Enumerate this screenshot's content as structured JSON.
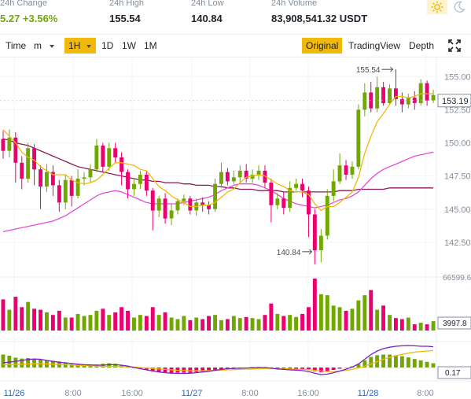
{
  "stats": {
    "change": {
      "label": "24h Change",
      "value": "5.27 +3.56%"
    },
    "high": {
      "label": "24h High",
      "value": "155.54"
    },
    "low": {
      "label": "24h Low",
      "value": "140.84"
    },
    "volume": {
      "label": "24h Volume",
      "value": "83,908,541.32 USDT"
    }
  },
  "theme": {
    "light_icon": "sun-icon",
    "dark_icon": "moon-icon",
    "active": "light"
  },
  "toolbar": {
    "time_label": "Time",
    "minute_select": "m",
    "intervals": [
      "1H",
      "1D",
      "1W",
      "1M"
    ],
    "active_interval": "1H",
    "views": [
      "Original",
      "TradingView",
      "Depth"
    ],
    "active_view": "Original",
    "expand_icon": "expand-icon"
  },
  "colors": {
    "up": "#70a800",
    "down": "#ea0070",
    "ma7": "#f0b90b",
    "ma25": "#e44cd9",
    "ma99": "#8e1b55",
    "macd_dif": "#7a22c8",
    "macd_dea": "#f0b90b",
    "accent": "#f0b90b"
  },
  "chart_data": {
    "type": "candlestick",
    "x_ticks": [
      "11/26",
      "8:00",
      "16:00",
      "11/27",
      "8:00",
      "16:00",
      "11/28",
      "8:00"
    ],
    "price_ticks": [
      "155.00",
      "152.50",
      "150.00",
      "147.50",
      "145.00",
      "142.50"
    ],
    "price_ylim": [
      140.0,
      156.5
    ],
    "current_price": "153.19",
    "high_marker": "155.54",
    "low_marker": "140.84",
    "volume_ticks": [
      "66599.63",
      "3997.8"
    ],
    "macd_ticks": [
      "0.17"
    ],
    "candles": [
      [
        150.3,
        149.4,
        150.9,
        148.8
      ],
      [
        149.4,
        150.4,
        151.0,
        148.9
      ],
      [
        150.4,
        148.5,
        150.8,
        147.0
      ],
      [
        148.5,
        147.3,
        149.0,
        146.5
      ],
      [
        147.3,
        149.6,
        150.0,
        147.0
      ],
      [
        149.6,
        148.0,
        149.9,
        146.8
      ],
      [
        148.0,
        146.7,
        148.3,
        145.0
      ],
      [
        146.7,
        147.8,
        148.4,
        146.3
      ],
      [
        147.8,
        146.8,
        148.3,
        146.0
      ],
      [
        146.8,
        145.5,
        147.2,
        144.8
      ],
      [
        145.5,
        147.2,
        147.6,
        145.0
      ],
      [
        147.2,
        146.0,
        147.5,
        145.2
      ],
      [
        146.0,
        147.3,
        148.0,
        145.8
      ],
      [
        147.3,
        147.4,
        147.8,
        146.8
      ],
      [
        147.4,
        148.0,
        148.4,
        147.0
      ],
      [
        148.0,
        149.8,
        150.3,
        147.8
      ],
      [
        149.8,
        148.2,
        150.0,
        147.8
      ],
      [
        148.2,
        149.6,
        150.0,
        147.9
      ],
      [
        149.6,
        148.9,
        150.0,
        148.5
      ],
      [
        148.9,
        147.8,
        149.3,
        146.8
      ],
      [
        147.8,
        146.5,
        148.0,
        145.8
      ],
      [
        146.5,
        146.9,
        147.3,
        146.0
      ],
      [
        146.9,
        147.6,
        147.9,
        146.5
      ],
      [
        147.6,
        146.4,
        147.9,
        146.0
      ],
      [
        146.4,
        144.9,
        146.6,
        143.4
      ],
      [
        144.9,
        145.8,
        146.0,
        144.4
      ],
      [
        145.8,
        144.3,
        146.2,
        143.9
      ],
      [
        144.3,
        144.9,
        145.4,
        143.8
      ],
      [
        144.9,
        145.6,
        145.8,
        144.6
      ],
      [
        145.6,
        145.8,
        146.1,
        145.3
      ],
      [
        145.8,
        144.9,
        146.0,
        144.6
      ],
      [
        144.9,
        145.5,
        145.8,
        144.5
      ],
      [
        145.5,
        145.3,
        145.9,
        144.8
      ],
      [
        145.3,
        145.0,
        145.6,
        144.6
      ],
      [
        145.0,
        146.9,
        147.3,
        144.8
      ],
      [
        146.9,
        147.8,
        148.5,
        146.6
      ],
      [
        147.8,
        147.1,
        148.1,
        146.8
      ],
      [
        147.1,
        147.4,
        147.9,
        146.9
      ],
      [
        147.4,
        147.9,
        148.3,
        147.0
      ],
      [
        147.9,
        147.3,
        148.4,
        147.0
      ],
      [
        147.3,
        147.6,
        148.0,
        147.0
      ],
      [
        147.6,
        147.9,
        148.3,
        147.2
      ],
      [
        147.9,
        147.0,
        148.3,
        146.6
      ],
      [
        147.0,
        145.3,
        147.3,
        144.0
      ],
      [
        145.3,
        145.8,
        146.2,
        145.0
      ],
      [
        145.8,
        145.1,
        146.3,
        144.6
      ],
      [
        145.1,
        146.6,
        147.1,
        144.8
      ],
      [
        146.6,
        146.9,
        147.3,
        146.4
      ],
      [
        146.9,
        146.4,
        147.3,
        145.9
      ],
      [
        146.4,
        144.6,
        146.7,
        142.9
      ],
      [
        144.6,
        141.9,
        145.0,
        140.84
      ],
      [
        141.9,
        143.0,
        143.5,
        141.0
      ],
      [
        143.0,
        146.0,
        146.5,
        142.7
      ],
      [
        146.0,
        147.1,
        148.0,
        145.6
      ],
      [
        147.1,
        148.3,
        149.2,
        146.9
      ],
      [
        148.3,
        147.6,
        148.7,
        147.2
      ],
      [
        147.6,
        148.2,
        148.6,
        147.3
      ],
      [
        148.2,
        152.5,
        152.9,
        148.0
      ],
      [
        152.5,
        153.8,
        154.5,
        152.0
      ],
      [
        153.8,
        152.6,
        154.6,
        152.3
      ],
      [
        152.6,
        154.2,
        155.0,
        152.3
      ],
      [
        154.2,
        153.0,
        154.6,
        152.8
      ],
      [
        153.0,
        154.1,
        154.4,
        152.9
      ],
      [
        154.1,
        153.3,
        155.54,
        152.8
      ],
      [
        153.3,
        152.9,
        153.8,
        152.3
      ],
      [
        152.9,
        153.4,
        153.7,
        152.6
      ],
      [
        153.4,
        153.0,
        153.9,
        152.5
      ],
      [
        153.0,
        154.5,
        154.8,
        152.8
      ],
      [
        154.5,
        153.2,
        154.7,
        152.8
      ],
      [
        153.2,
        153.6,
        154.0,
        153.0
      ]
    ],
    "ma7": [
      151.0,
      150.5,
      150.0,
      149.3,
      148.9,
      148.7,
      148.2,
      147.9,
      147.6,
      147.6,
      147.6,
      147.2,
      147.0,
      146.9,
      147.0,
      147.2,
      147.6,
      148.1,
      148.5,
      148.5,
      148.4,
      148.3,
      148.0,
      147.9,
      147.3,
      146.7,
      146.4,
      146.0,
      145.7,
      145.5,
      145.2,
      145.2,
      145.3,
      145.3,
      145.5,
      145.9,
      146.3,
      146.5,
      147.0,
      147.4,
      147.5,
      147.6,
      147.5,
      147.2,
      146.9,
      146.7,
      146.4,
      146.3,
      146.3,
      146.1,
      145.4,
      144.9,
      145.2,
      145.2,
      145.5,
      145.9,
      146.3,
      147.4,
      149.2,
      150.5,
      151.6,
      152.2,
      152.9,
      153.5,
      153.5,
      153.4,
      153.5,
      153.7,
      153.7,
      153.7
    ],
    "ma25": [
      143.3,
      143.4,
      143.5,
      143.6,
      143.7,
      143.8,
      143.9,
      144.0,
      144.1,
      144.3,
      144.5,
      144.8,
      145.1,
      145.4,
      145.7,
      146.0,
      146.2,
      146.3,
      146.4,
      146.3,
      146.1,
      145.9,
      145.7,
      145.5,
      145.4,
      145.4,
      145.4,
      145.4,
      145.4,
      145.5,
      145.6,
      145.7,
      145.8,
      145.9,
      146.1,
      146.4,
      146.6,
      146.8,
      146.9,
      146.9,
      146.9,
      146.8,
      146.6,
      146.4,
      146.1,
      145.8,
      145.6,
      145.4,
      145.3,
      145.2,
      145.1,
      145.2,
      145.3,
      145.5,
      145.7,
      145.8,
      146.0,
      146.3,
      146.8,
      147.3,
      147.7,
      148.0,
      148.2,
      148.4,
      148.6,
      148.8,
      149.0,
      149.1,
      149.2,
      149.3
    ],
    "ma99": [
      150.3,
      150.2,
      150.0,
      149.9,
      149.8,
      149.6,
      149.4,
      149.2,
      149.0,
      148.8,
      148.6,
      148.4,
      148.2,
      148.1,
      148.0,
      147.9,
      147.8,
      147.7,
      147.6,
      147.5,
      147.4,
      147.3,
      147.2,
      147.2,
      147.1,
      147.1,
      147.0,
      147.0,
      147.0,
      146.9,
      146.9,
      146.8,
      146.8,
      146.8,
      146.7,
      146.7,
      146.6,
      146.6,
      146.5,
      146.5,
      146.5,
      146.4,
      146.4,
      146.4,
      146.4,
      146.3,
      146.3,
      146.3,
      146.3,
      146.3,
      146.3,
      146.3,
      146.3,
      146.3,
      146.4,
      146.4,
      146.4,
      146.5,
      146.5,
      146.5,
      146.5,
      146.5,
      146.6,
      146.6,
      146.6,
      146.6,
      146.6,
      146.6,
      146.6,
      146.6
    ],
    "volume": [
      60,
      40,
      65,
      45,
      55,
      42,
      40,
      35,
      30,
      38,
      25,
      25,
      32,
      28,
      30,
      38,
      42,
      30,
      35,
      45,
      38,
      25,
      30,
      28,
      45,
      30,
      35,
      25,
      22,
      28,
      20,
      25,
      22,
      28,
      30,
      20,
      22,
      28,
      24,
      26,
      24,
      22,
      30,
      52,
      32,
      28,
      30,
      26,
      32,
      45,
      100,
      70,
      68,
      48,
      45,
      38,
      42,
      58,
      68,
      78,
      40,
      48,
      30,
      24,
      22,
      25,
      12,
      15,
      12,
      18
    ],
    "macd_hist": [
      0.55,
      0.5,
      0.42,
      0.38,
      0.4,
      0.37,
      0.34,
      0.3,
      0.28,
      0.26,
      0.22,
      0.15,
      0.14,
      0.13,
      0.12,
      0.13,
      0.16,
      0.18,
      0.16,
      0.1,
      0.04,
      -0.02,
      -0.05,
      -0.09,
      -0.14,
      -0.18,
      -0.2,
      -0.22,
      -0.22,
      -0.22,
      -0.22,
      -0.2,
      -0.18,
      -0.16,
      -0.12,
      -0.08,
      -0.05,
      -0.04,
      -0.02,
      0.0,
      0.02,
      0.03,
      0.02,
      -0.02,
      -0.04,
      -0.06,
      -0.06,
      -0.06,
      -0.08,
      -0.1,
      -0.16,
      -0.2,
      -0.16,
      -0.1,
      -0.05,
      0.0,
      0.05,
      0.15,
      0.3,
      0.45,
      0.52,
      0.55,
      0.55,
      0.52,
      0.48,
      0.43,
      0.36,
      0.3,
      0.24,
      0.18
    ],
    "macd_dif": [
      0.2,
      0.23,
      0.26,
      0.3,
      0.34,
      0.36,
      0.35,
      0.3,
      0.26,
      0.22,
      0.2,
      0.17,
      0.14,
      0.12,
      0.11,
      0.1,
      0.1,
      0.12,
      0.12,
      0.1,
      0.06,
      0.0,
      -0.05,
      -0.1,
      -0.15,
      -0.19,
      -0.22,
      -0.24,
      -0.25,
      -0.25,
      -0.24,
      -0.22,
      -0.19,
      -0.16,
      -0.12,
      -0.08,
      -0.05,
      -0.04,
      -0.03,
      -0.02,
      -0.01,
      0.0,
      0.0,
      -0.03,
      -0.06,
      -0.08,
      -0.1,
      -0.11,
      -0.13,
      -0.17,
      -0.24,
      -0.3,
      -0.28,
      -0.22,
      -0.15,
      -0.07,
      0.02,
      0.15,
      0.35,
      0.55,
      0.7,
      0.8,
      0.86,
      0.9,
      0.92,
      0.93,
      0.92,
      0.9,
      0.9,
      0.88
    ],
    "macd_dea": [
      0.12,
      0.12,
      0.13,
      0.14,
      0.15,
      0.16,
      0.16,
      0.15,
      0.14,
      0.13,
      0.12,
      0.11,
      0.09,
      0.08,
      0.07,
      0.06,
      0.05,
      0.05,
      0.05,
      0.04,
      0.03,
      0.02,
      0.0,
      -0.02,
      -0.04,
      -0.06,
      -0.08,
      -0.1,
      -0.12,
      -0.13,
      -0.14,
      -0.14,
      -0.14,
      -0.13,
      -0.12,
      -0.11,
      -0.1,
      -0.09,
      -0.08,
      -0.07,
      -0.06,
      -0.05,
      -0.04,
      -0.04,
      -0.05,
      -0.05,
      -0.06,
      -0.07,
      -0.08,
      -0.09,
      -0.12,
      -0.15,
      -0.17,
      -0.17,
      -0.15,
      -0.12,
      -0.08,
      -0.02,
      0.06,
      0.15,
      0.25,
      0.35,
      0.43,
      0.5,
      0.56,
      0.61,
      0.65,
      0.68,
      0.7,
      0.72
    ]
  }
}
